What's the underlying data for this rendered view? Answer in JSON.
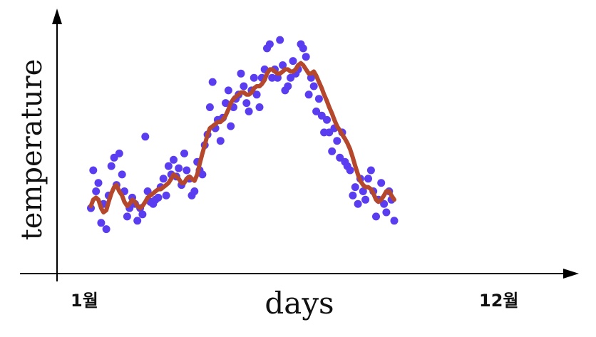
{
  "chart_data": {
    "type": "scatter",
    "title": "",
    "xlabel": "days",
    "ylabel": "temperature",
    "x_ticks": [
      {
        "x": 1,
        "label": "1월"
      },
      {
        "x": 12,
        "label": "12월"
      }
    ],
    "xlim": [
      0.15,
      13.0
    ],
    "ylim": [
      0,
      100
    ],
    "grid": false,
    "colors": {
      "points": "#5a3df0",
      "trend": "#b5472c",
      "axis": "#000000"
    },
    "series": [
      {
        "kind": "points",
        "values": [
          [
            1.01,
            22
          ],
          [
            1.07,
            40
          ],
          [
            1.14,
            30
          ],
          [
            1.2,
            34
          ],
          [
            1.27,
            15
          ],
          [
            1.33,
            24
          ],
          [
            1.4,
            12
          ],
          [
            1.46,
            28
          ],
          [
            1.53,
            42
          ],
          [
            1.6,
            46
          ],
          [
            1.66,
            33
          ],
          [
            1.73,
            48
          ],
          [
            1.8,
            38
          ],
          [
            1.86,
            30
          ],
          [
            1.93,
            18
          ],
          [
            1.99,
            22
          ],
          [
            2.06,
            27
          ],
          [
            2.13,
            24
          ],
          [
            2.19,
            16
          ],
          [
            2.26,
            22
          ],
          [
            2.32,
            19
          ],
          [
            2.39,
            56
          ],
          [
            2.45,
            30
          ],
          [
            2.52,
            25
          ],
          [
            2.59,
            24
          ],
          [
            2.65,
            26
          ],
          [
            2.72,
            27
          ],
          [
            2.78,
            32
          ],
          [
            2.85,
            36
          ],
          [
            2.92,
            28
          ],
          [
            2.98,
            42
          ],
          [
            3.05,
            38
          ],
          [
            3.11,
            45
          ],
          [
            3.18,
            37
          ],
          [
            3.24,
            41
          ],
          [
            3.31,
            33
          ],
          [
            3.38,
            48
          ],
          [
            3.44,
            40
          ],
          [
            3.51,
            36
          ],
          [
            3.57,
            28
          ],
          [
            3.64,
            30
          ],
          [
            3.71,
            44
          ],
          [
            3.77,
            40
          ],
          [
            3.84,
            38
          ],
          [
            3.9,
            52
          ],
          [
            3.97,
            57
          ],
          [
            4.03,
            70
          ],
          [
            4.1,
            82
          ],
          [
            4.17,
            60
          ],
          [
            4.23,
            64
          ],
          [
            4.3,
            54
          ],
          [
            4.36,
            65
          ],
          [
            4.43,
            72
          ],
          [
            4.5,
            78
          ],
          [
            4.56,
            61
          ],
          [
            4.63,
            70
          ],
          [
            4.69,
            74
          ],
          [
            4.76,
            76
          ],
          [
            4.82,
            86
          ],
          [
            4.89,
            80
          ],
          [
            4.96,
            72
          ],
          [
            5.02,
            68
          ],
          [
            5.09,
            78
          ],
          [
            5.15,
            84
          ],
          [
            5.22,
            76
          ],
          [
            5.29,
            70
          ],
          [
            5.35,
            84
          ],
          [
            5.42,
            88
          ],
          [
            5.48,
            98
          ],
          [
            5.55,
            100
          ],
          [
            5.61,
            84
          ],
          [
            5.68,
            88
          ],
          [
            5.75,
            84
          ],
          [
            5.81,
            102
          ],
          [
            5.88,
            90
          ],
          [
            5.94,
            78
          ],
          [
            6.01,
            80
          ],
          [
            6.08,
            84
          ],
          [
            6.14,
            92
          ],
          [
            6.21,
            86
          ],
          [
            6.27,
            88
          ],
          [
            6.34,
            100
          ],
          [
            6.4,
            98
          ],
          [
            6.47,
            94
          ],
          [
            6.54,
            76
          ],
          [
            6.6,
            84
          ],
          [
            6.67,
            80
          ],
          [
            6.73,
            68
          ],
          [
            6.8,
            74
          ],
          [
            6.87,
            66
          ],
          [
            6.93,
            58
          ],
          [
            7.0,
            64
          ],
          [
            7.06,
            58
          ],
          [
            7.13,
            49
          ],
          [
            7.19,
            60
          ],
          [
            7.26,
            54
          ],
          [
            7.33,
            46
          ],
          [
            7.39,
            58
          ],
          [
            7.46,
            44
          ],
          [
            7.52,
            42
          ],
          [
            7.59,
            40
          ],
          [
            7.66,
            28
          ],
          [
            7.72,
            32
          ],
          [
            7.79,
            24
          ],
          [
            7.85,
            36
          ],
          [
            7.92,
            30
          ],
          [
            7.98,
            26
          ],
          [
            8.05,
            36
          ],
          [
            8.12,
            40
          ],
          [
            8.18,
            30
          ],
          [
            8.25,
            18
          ],
          [
            8.31,
            26
          ],
          [
            8.38,
            34
          ],
          [
            8.45,
            24
          ],
          [
            8.51,
            20
          ],
          [
            8.58,
            30
          ],
          [
            8.64,
            26
          ],
          [
            8.71,
            16
          ]
        ],
        "name": ""
      },
      {
        "kind": "trend",
        "values": [
          [
            1.01,
            23
          ],
          [
            1.07,
            26
          ],
          [
            1.14,
            27
          ],
          [
            1.2,
            26
          ],
          [
            1.27,
            22
          ],
          [
            1.33,
            20
          ],
          [
            1.4,
            21
          ],
          [
            1.46,
            25
          ],
          [
            1.53,
            29
          ],
          [
            1.6,
            32
          ],
          [
            1.66,
            33
          ],
          [
            1.73,
            30
          ],
          [
            1.8,
            28
          ],
          [
            1.86,
            25
          ],
          [
            1.93,
            23
          ],
          [
            1.99,
            24
          ],
          [
            2.06,
            26
          ],
          [
            2.13,
            25
          ],
          [
            2.19,
            23
          ],
          [
            2.26,
            22
          ],
          [
            2.32,
            23
          ],
          [
            2.39,
            25
          ],
          [
            2.45,
            27
          ],
          [
            2.52,
            28
          ],
          [
            2.59,
            29
          ],
          [
            2.65,
            30
          ],
          [
            2.72,
            31
          ],
          [
            2.78,
            31
          ],
          [
            2.85,
            32
          ],
          [
            2.92,
            33
          ],
          [
            2.98,
            34
          ],
          [
            3.05,
            36
          ],
          [
            3.11,
            38
          ],
          [
            3.18,
            37
          ],
          [
            3.24,
            36
          ],
          [
            3.31,
            34
          ],
          [
            3.38,
            34
          ],
          [
            3.44,
            36
          ],
          [
            3.51,
            37
          ],
          [
            3.57,
            36
          ],
          [
            3.64,
            35
          ],
          [
            3.71,
            38
          ],
          [
            3.77,
            43
          ],
          [
            3.84,
            48
          ],
          [
            3.9,
            52
          ],
          [
            3.97,
            57
          ],
          [
            4.03,
            60
          ],
          [
            4.1,
            61
          ],
          [
            4.17,
            62
          ],
          [
            4.23,
            63
          ],
          [
            4.3,
            63
          ],
          [
            4.36,
            64
          ],
          [
            4.43,
            66
          ],
          [
            4.5,
            69
          ],
          [
            4.56,
            72
          ],
          [
            4.63,
            74
          ],
          [
            4.69,
            75
          ],
          [
            4.76,
            76
          ],
          [
            4.82,
            77
          ],
          [
            4.89,
            77
          ],
          [
            4.96,
            76
          ],
          [
            5.02,
            76
          ],
          [
            5.09,
            77
          ],
          [
            5.15,
            79
          ],
          [
            5.22,
            80
          ],
          [
            5.29,
            80
          ],
          [
            5.35,
            81
          ],
          [
            5.42,
            83
          ],
          [
            5.48,
            86
          ],
          [
            5.55,
            88
          ],
          [
            5.61,
            88
          ],
          [
            5.68,
            87
          ],
          [
            5.75,
            86
          ],
          [
            5.81,
            86
          ],
          [
            5.88,
            87
          ],
          [
            5.94,
            88
          ],
          [
            6.01,
            88
          ],
          [
            6.08,
            87
          ],
          [
            6.14,
            87
          ],
          [
            6.21,
            88
          ],
          [
            6.27,
            90
          ],
          [
            6.34,
            91
          ],
          [
            6.4,
            90
          ],
          [
            6.47,
            88
          ],
          [
            6.54,
            86
          ],
          [
            6.6,
            86
          ],
          [
            6.67,
            87
          ],
          [
            6.73,
            85
          ],
          [
            6.8,
            82
          ],
          [
            6.87,
            79
          ],
          [
            6.93,
            76
          ],
          [
            7.0,
            73
          ],
          [
            7.06,
            70
          ],
          [
            7.13,
            67
          ],
          [
            7.19,
            64
          ],
          [
            7.26,
            61
          ],
          [
            7.33,
            59
          ],
          [
            7.39,
            57
          ],
          [
            7.46,
            55
          ],
          [
            7.52,
            53
          ],
          [
            7.59,
            50
          ],
          [
            7.66,
            46
          ],
          [
            7.72,
            42
          ],
          [
            7.79,
            38
          ],
          [
            7.85,
            35
          ],
          [
            7.92,
            33
          ],
          [
            7.98,
            32
          ],
          [
            8.05,
            32
          ],
          [
            8.12,
            31
          ],
          [
            8.18,
            29
          ],
          [
            8.25,
            26
          ],
          [
            8.31,
            25
          ],
          [
            8.38,
            26
          ],
          [
            8.45,
            28
          ],
          [
            8.51,
            30
          ],
          [
            8.58,
            30
          ],
          [
            8.64,
            28
          ],
          [
            8.71,
            26
          ]
        ],
        "name": ""
      }
    ]
  }
}
